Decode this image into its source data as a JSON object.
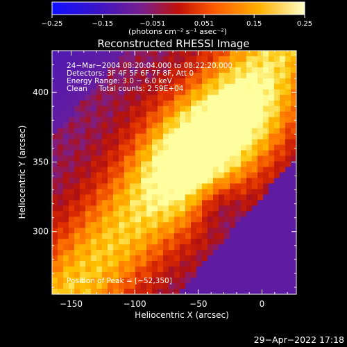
{
  "colorbar": {
    "ticks": [
      "-0.25",
      "-0.15",
      "-0.051",
      "0.051",
      "0.15",
      "0.25"
    ],
    "range": [
      -0.25,
      0.25
    ],
    "unit_label": "(photons cm⁻² s⁻¹ asec⁻²)"
  },
  "chart_data": {
    "type": "heatmap",
    "title": "Reconstructed RHESSI Image",
    "xlabel": "Heliocentric X (arcsec)",
    "ylabel": "Heliocentric Y (arcsec)",
    "xlim": [
      -165,
      27
    ],
    "ylim": [
      255,
      430
    ],
    "x_ticks": [
      -150,
      -100,
      -50,
      0
    ],
    "y_ticks": [
      300,
      350,
      400
    ],
    "x_tick_labels": [
      "−150",
      "−100",
      "−50",
      "0"
    ],
    "y_tick_labels": [
      "300",
      "350",
      "400"
    ],
    "peak": [
      -52,
      350
    ],
    "colormap": [
      "#1010ff",
      "#4018c0",
      "#7a1f8a",
      "#b01010",
      "#e03000",
      "#ff7a00",
      "#ffc000",
      "#ffffa0"
    ],
    "annotations": {
      "line1": "24−Mar−2004 08:20:04.000 to 08:22:20.000",
      "line2": "Detectors: 3F 4F 5F 6F 7F 8F, Att 0",
      "line3": "Energy Range: 3.0 − 6.0 keV",
      "line4": "Clean     Total counts: 2.59E+04",
      "peak_label": "Position of Peak = [−52,350]"
    }
  },
  "footer": {
    "timestamp": "29−Apr−2022 17:18"
  }
}
